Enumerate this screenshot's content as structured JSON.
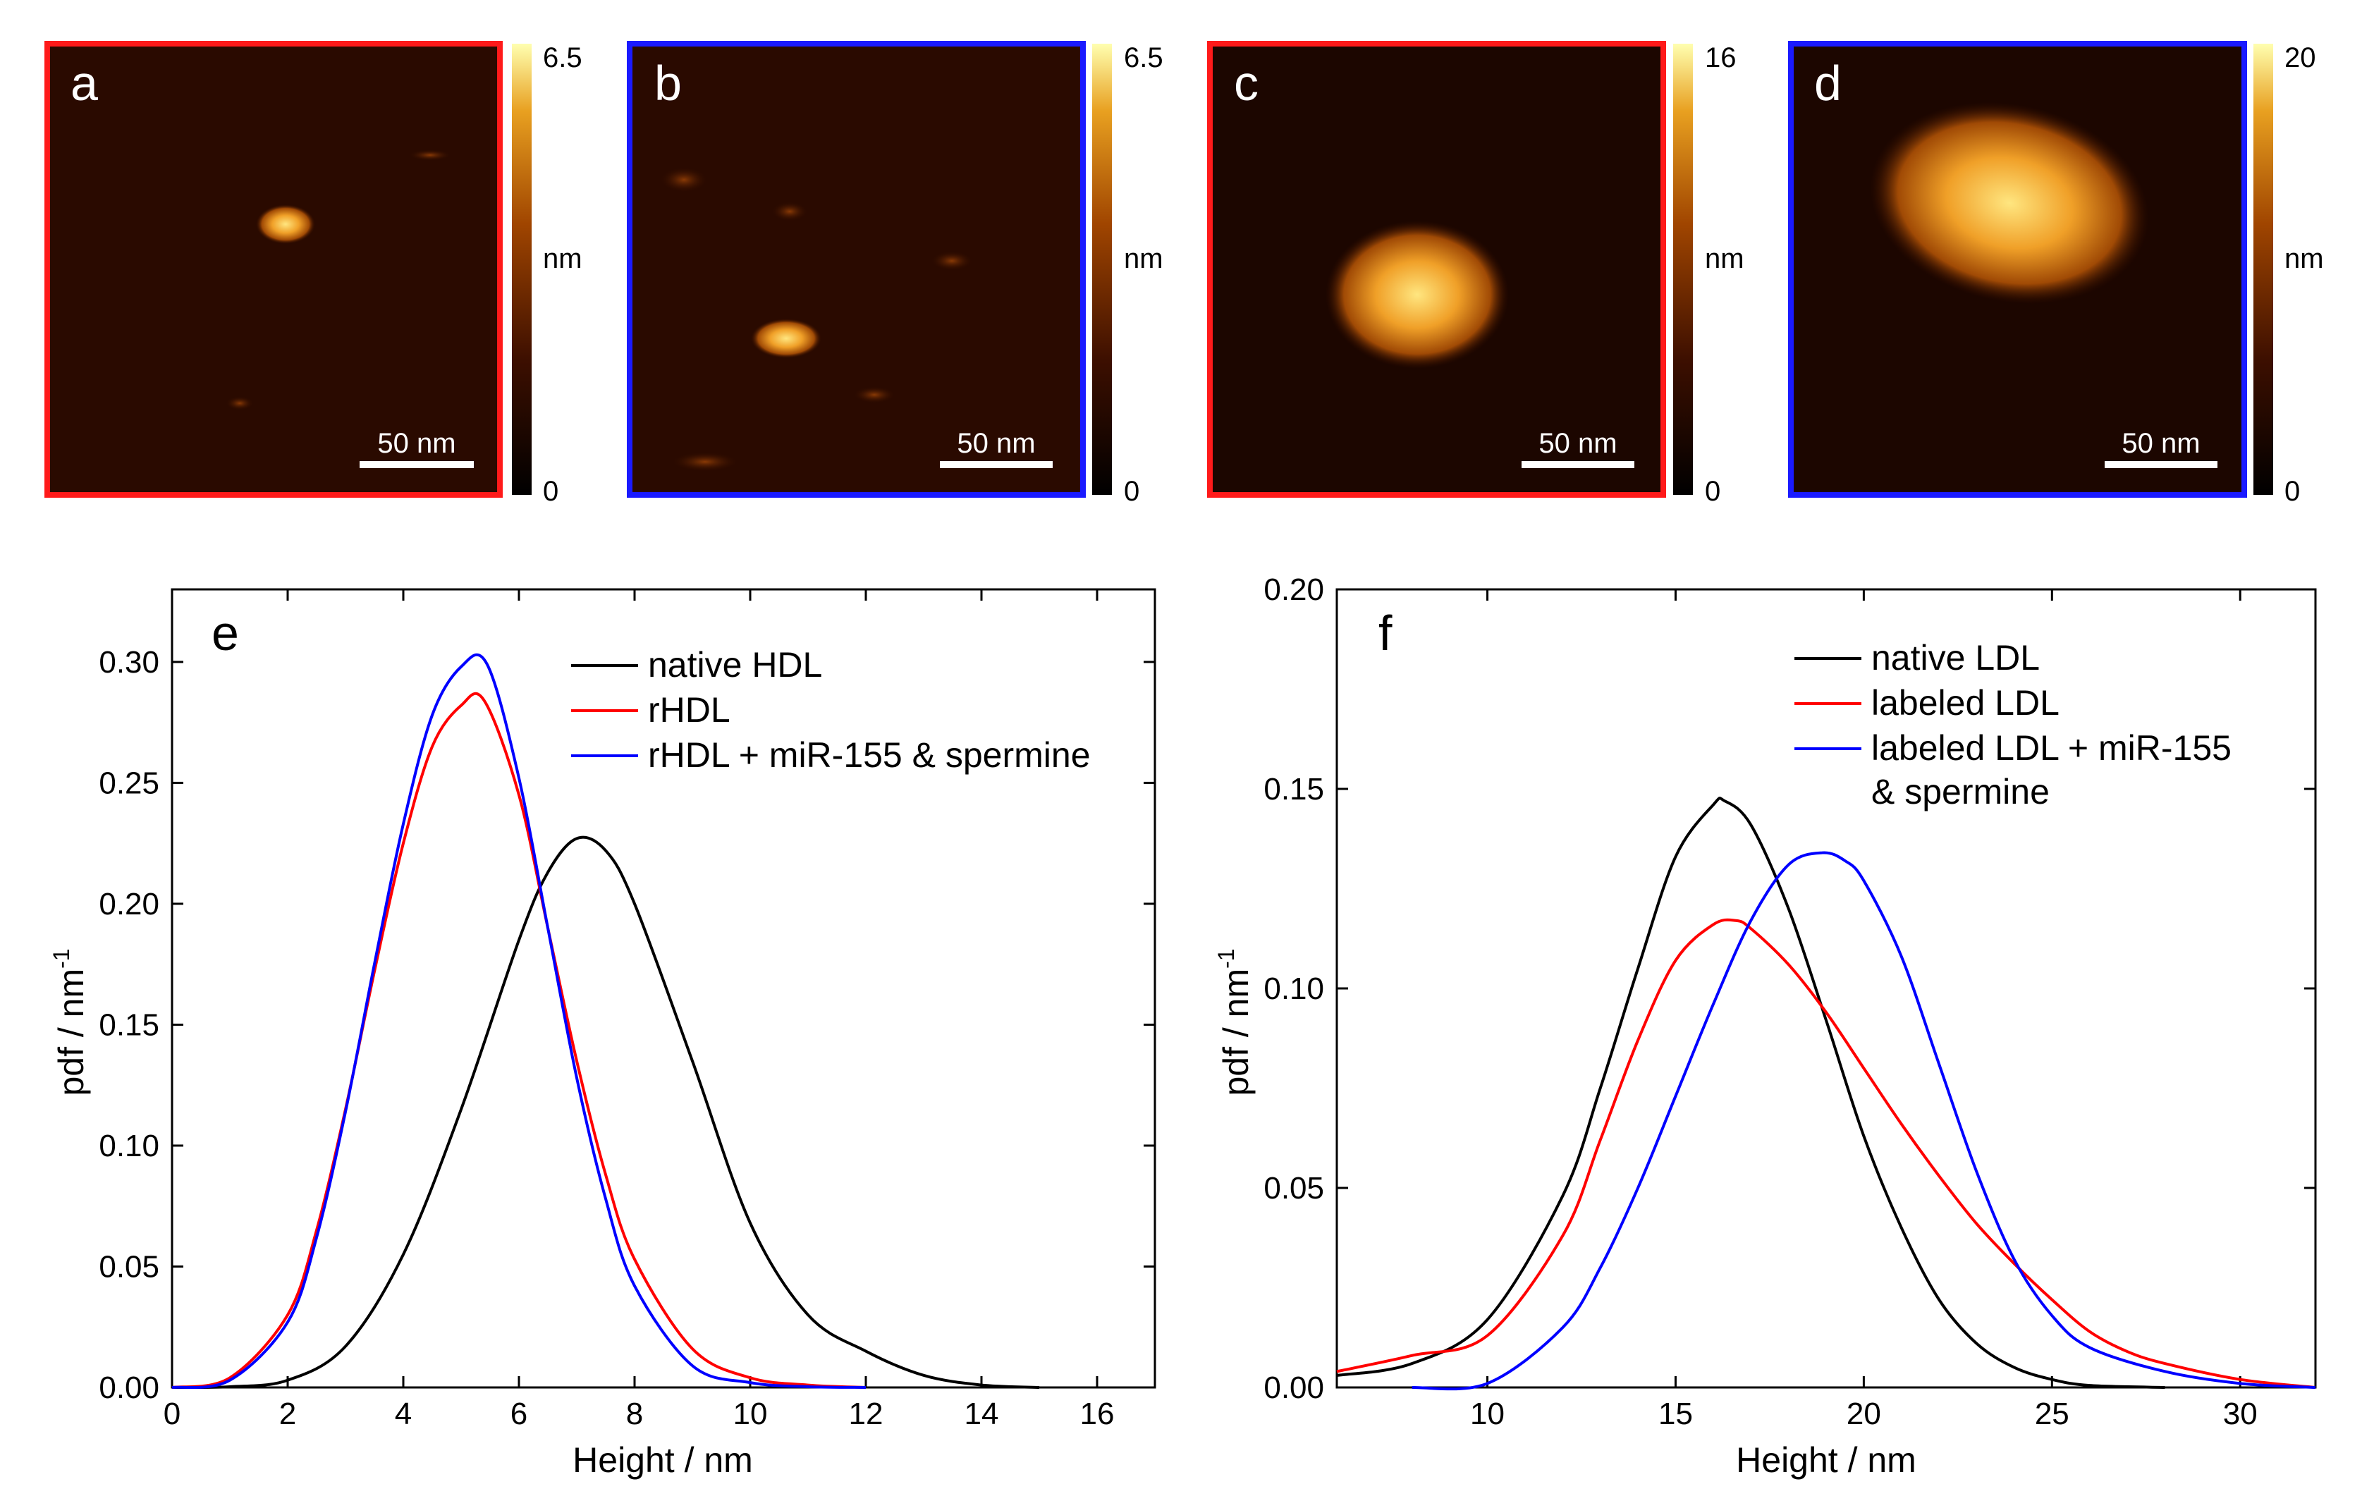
{
  "afm_panels": [
    {
      "letter": "a",
      "frame_color": "#ff1a1a",
      "cb_max": "6.5",
      "cb_min": "0",
      "cb_unit": "nm",
      "scale_bar": "50 nm"
    },
    {
      "letter": "b",
      "frame_color": "#1a1aff",
      "cb_max": "6.5",
      "cb_min": "0",
      "cb_unit": "nm",
      "scale_bar": "50 nm"
    },
    {
      "letter": "c",
      "frame_color": "#ff1a1a",
      "cb_max": "16",
      "cb_min": "0",
      "cb_unit": "nm",
      "scale_bar": "50 nm"
    },
    {
      "letter": "d",
      "frame_color": "#1a1aff",
      "cb_max": "20",
      "cb_min": "0",
      "cb_unit": "nm",
      "scale_bar": "50 nm"
    }
  ],
  "chart_data": [
    {
      "type": "line",
      "panel": "e",
      "xlabel": "Height / nm",
      "ylabel": "pdf / nm",
      "ylabel_sup": "-1",
      "xlim": [
        0,
        17
      ],
      "ylim": [
        0,
        0.33
      ],
      "xticks": [
        0,
        2,
        4,
        6,
        8,
        10,
        12,
        14,
        16
      ],
      "yticks": [
        0.0,
        0.05,
        0.1,
        0.15,
        0.2,
        0.25,
        0.3
      ],
      "xtick_labels": [
        "0",
        "2",
        "4",
        "6",
        "8",
        "10",
        "12",
        "14",
        "16"
      ],
      "ytick_labels": [
        "0.00",
        "0.05",
        "0.10",
        "0.15",
        "0.20",
        "0.25",
        "0.30"
      ],
      "series": [
        {
          "name": "native HDL",
          "color": "#000000",
          "x": [
            0,
            1,
            2,
            3,
            4,
            5,
            6,
            6.5,
            7,
            7.5,
            8,
            9,
            10,
            11,
            12,
            13,
            14,
            15
          ],
          "y": [
            0.0,
            0.0003,
            0.003,
            0.017,
            0.055,
            0.115,
            0.185,
            0.213,
            0.227,
            0.222,
            0.2,
            0.135,
            0.068,
            0.03,
            0.015,
            0.005,
            0.001,
            0.0
          ]
        },
        {
          "name": "rHDL",
          "color": "#ff0000",
          "x": [
            0,
            1,
            2,
            2.5,
            3,
            3.5,
            4,
            4.5,
            5,
            5.4,
            6,
            6.5,
            7,
            7.5,
            8,
            9,
            10,
            11,
            12
          ],
          "y": [
            0.0,
            0.004,
            0.03,
            0.065,
            0.115,
            0.172,
            0.225,
            0.265,
            0.282,
            0.284,
            0.245,
            0.19,
            0.135,
            0.088,
            0.053,
            0.016,
            0.004,
            0.001,
            0.0
          ]
        },
        {
          "name": "rHDL + miR-155 & spermine",
          "color": "#0000ff",
          "x": [
            0,
            1,
            2,
            2.5,
            3,
            3.5,
            4,
            4.5,
            5,
            5.45,
            6,
            6.5,
            7,
            7.5,
            8,
            9,
            10,
            11,
            12
          ],
          "y": [
            0.0,
            0.003,
            0.027,
            0.062,
            0.114,
            0.175,
            0.233,
            0.278,
            0.298,
            0.299,
            0.252,
            0.19,
            0.128,
            0.078,
            0.042,
            0.009,
            0.002,
            0.0003,
            0.0
          ]
        }
      ]
    },
    {
      "type": "line",
      "panel": "f",
      "xlabel": "Height / nm",
      "ylabel": "pdf / nm",
      "ylabel_sup": "-1",
      "xlim": [
        6,
        32
      ],
      "ylim": [
        0,
        0.2
      ],
      "xticks": [
        10,
        15,
        20,
        25,
        30
      ],
      "yticks": [
        0.0,
        0.05,
        0.1,
        0.15,
        0.2
      ],
      "xtick_labels": [
        "10",
        "15",
        "20",
        "25",
        "30"
      ],
      "ytick_labels": [
        "0.00",
        "0.05",
        "0.10",
        "0.15",
        "0.20"
      ],
      "series": [
        {
          "name": "native LDL",
          "color": "#000000",
          "x": [
            6,
            8,
            10,
            12,
            13,
            14,
            15,
            16,
            16.3,
            17,
            18,
            19,
            20,
            21,
            22,
            23,
            24,
            25,
            26,
            28
          ],
          "y": [
            0.003,
            0.006,
            0.017,
            0.048,
            0.075,
            0.105,
            0.133,
            0.146,
            0.147,
            0.141,
            0.12,
            0.092,
            0.063,
            0.04,
            0.022,
            0.011,
            0.005,
            0.002,
            0.0005,
            0.0
          ]
        },
        {
          "name": "labeled LDL",
          "color": "#ff0000",
          "x": [
            6,
            8,
            10,
            12,
            13,
            14,
            15,
            16,
            16.6,
            17,
            18,
            19,
            20,
            21,
            22,
            23,
            24,
            25,
            26,
            27,
            28,
            30,
            32
          ],
          "y": [
            0.004,
            0.008,
            0.013,
            0.038,
            0.062,
            0.087,
            0.107,
            0.116,
            0.117,
            0.115,
            0.106,
            0.094,
            0.08,
            0.066,
            0.053,
            0.041,
            0.031,
            0.022,
            0.014,
            0.009,
            0.006,
            0.002,
            0.0
          ]
        },
        {
          "name": "labeled LDL + miR-155\n& spermine",
          "color": "#0000ff",
          "x": [
            8,
            10,
            12,
            13,
            14,
            15,
            16,
            17,
            18,
            18.9,
            19.5,
            20,
            21,
            22,
            23,
            24,
            25,
            26,
            28,
            30,
            32
          ],
          "y": [
            0.0,
            0.001,
            0.015,
            0.03,
            0.05,
            0.073,
            0.096,
            0.117,
            0.131,
            0.134,
            0.132,
            0.127,
            0.108,
            0.081,
            0.054,
            0.032,
            0.018,
            0.01,
            0.004,
            0.001,
            0.0
          ]
        }
      ]
    }
  ]
}
